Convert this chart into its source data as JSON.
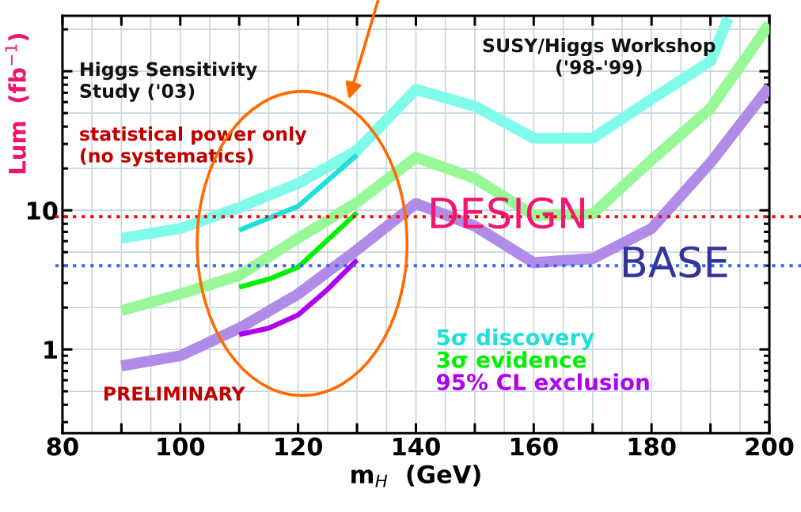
{
  "chart_data": {
    "type": "line",
    "xlabel": "m$_{H}$  (GeV)",
    "ylabel": "Lum  (fb$^{−1}$)",
    "x": [
      90,
      100,
      110,
      120,
      130,
      140,
      150,
      160,
      170,
      180,
      190,
      193
    ],
    "series": [
      {
        "color": "#80fbea",
        "values": [
          6.3,
          7.4,
          10.5,
          15.6,
          27,
          74,
          56,
          33,
          33,
          63,
          118,
          240
        ]
      },
      {
        "color": "#98f898",
        "x": [
          90,
          100,
          110,
          120,
          130,
          140,
          150,
          160,
          170,
          180,
          190,
          200
        ],
        "values": [
          1.9,
          2.5,
          3.4,
          6.3,
          11.4,
          24,
          17,
          9.2,
          9.4,
          23,
          54,
          218
        ]
      },
      {
        "color": "#b08ce8",
        "x": [
          90,
          100,
          110,
          120,
          130,
          140,
          150,
          160,
          170,
          180,
          190,
          200
        ],
        "values": [
          0.76,
          0.9,
          1.42,
          2.5,
          5.2,
          11.2,
          7.7,
          4.2,
          4.5,
          7.4,
          22,
          77
        ]
      },
      {
        "name": "5σ discovery",
        "color": "#1de0d8",
        "x": [
          110,
          120,
          130
        ],
        "values": [
          7.2,
          10.7,
          25
        ]
      },
      {
        "name": "3σ evidence",
        "color": "#00f000",
        "x": [
          110,
          115,
          120,
          130
        ],
        "values": [
          2.8,
          3.2,
          3.9,
          9.6
        ]
      },
      {
        "name": "95% CL exclusion",
        "color": "#b000f0",
        "x": [
          110,
          115,
          120,
          125,
          130
        ],
        "values": [
          1.28,
          1.42,
          1.77,
          2.7,
          4.4
        ]
      }
    ],
    "log": "y",
    "xlim": [
      80,
      200
    ],
    "xticks": [
      80,
      {
        "value": 90,
        "label": null
      },
      100,
      {
        "value": 110,
        "label": null
      },
      120,
      {
        "value": 130,
        "label": null
      },
      140,
      {
        "value": 150,
        "label": null
      },
      160,
      {
        "value": 170,
        "label": null
      },
      180,
      {
        "value": 190,
        "label": null
      },
      200
    ],
    "ylim": [
      0.25,
      250
    ],
    "yticks": [
      1,
      10,
      {
        "value": 100,
        "label": null
      }
    ],
    "grid": true,
    "legend": "bottom right",
    "line_style": "solid",
    "ref_lines": [
      {
        "axis": "y",
        "value": 9,
        "label": "DESIGN",
        "color": "#ff0000",
        "line_style": "dotted"
      },
      {
        "axis": "y",
        "value": 4,
        "label": "BASE",
        "color": "#3366ff",
        "line_style": "dotted"
      }
    ],
    "annotations": [
      "Higgs Sensitivity\nStudy ('03)",
      "statistical power only\n(no systematics)",
      "SUSY/Higgs Workshop\n('98-'99)",
      "PRELIMINARY"
    ]
  }
}
